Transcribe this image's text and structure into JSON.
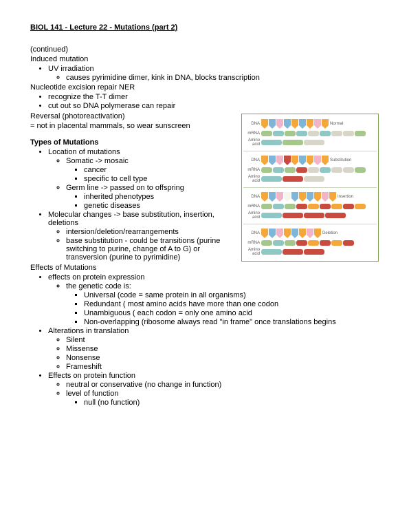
{
  "title": "BIOL 141 - Lecture 22 - Mutations (part 2)",
  "intro": {
    "continued": "(continued)",
    "induced": "Induced mutation",
    "uv": "UV irradiation",
    "uv_detail": "causes pyrimidine dimer, kink in DNA, blocks transcription",
    "ner": "Nucleotide excision repair NER",
    "ner1": "recognize the T-T dimer",
    "ner2": "cut out so DNA polymerase can repair",
    "reversal": "Reversal (photoreactivation)",
    "reversal_note": "= not in placental mammals, so wear sunscreen"
  },
  "types_header": "Types of Mutations",
  "types": {
    "loc": "Location of mutations",
    "somatic": "Somatic -> mosaic",
    "somatic1": "cancer",
    "somatic2": "specific to cell type",
    "germ": "Germ line -> passed on to offspring",
    "germ1": "inherited phenotypes",
    "germ2": "genetic diseases",
    "molec": "Molecular changes -> base substitution, insertion, deletions",
    "molec1": "intersion/deletion/rearrangements",
    "molec2": "base substitution - could be transitions (purine switching to purine, change of A to G) or transversion (purine to pyrimidine)"
  },
  "effects_header": "Effects of Mutations",
  "effects": {
    "prot": "effects on protein expression",
    "gc": "the genetic code is:",
    "gc1": "Universal (code = same protein in all organisms)",
    "gc2": "Redundant ( most amino acids have more than one codon",
    "gc3": "Unambiguous ( each codon = only one amino acid",
    "gc4": "Non-overlapping (ribosome always read \"in frame\" once translations begins",
    "alt": "Alterations in translation",
    "alt1": "Silent",
    "alt2": "Missense",
    "alt3": "Nonsense",
    "alt4": "Frameshift",
    "fn": "Effects on protein function",
    "fn1": "neutral or conservative (no change in function)",
    "fn2": "level of function",
    "fn2a": "null (no function)"
  },
  "diagram": {
    "row_labels": [
      "DNA",
      "mRNA",
      "Amino acid"
    ],
    "right_labels": [
      "Normal",
      "Substitution",
      "Insertion",
      "Deletion"
    ],
    "colors": {
      "orange": "#f4a83c",
      "blue": "#7fb5d6",
      "pink": "#f2b5c8",
      "red": "#c94a3f",
      "green": "#a5c78b",
      "teal": "#8ec7c4",
      "gray": "#d8d6c8",
      "white": "#f5f5f0"
    },
    "arrow_patterns": [
      [
        "orange",
        "blue",
        "pink",
        "blue",
        "orange",
        "blue",
        "orange",
        "pink",
        "orange"
      ],
      [
        "orange",
        "blue",
        "pink",
        "red",
        "orange",
        "blue",
        "orange",
        "pink",
        "orange"
      ],
      [
        "orange",
        "blue",
        "pink",
        "white",
        "blue",
        "orange",
        "blue",
        "orange",
        "pink",
        "orange"
      ],
      [
        "orange",
        "blue",
        "pink",
        "orange",
        "blue",
        "orange",
        "pink",
        "orange"
      ]
    ],
    "pill_patterns": [
      [
        "green",
        "teal",
        "green",
        "teal",
        "gray",
        "teal",
        "gray",
        "gray",
        "green"
      ],
      [
        "green",
        "teal",
        "green",
        "red",
        "gray",
        "teal",
        "gray",
        "gray",
        "green"
      ],
      [
        "green",
        "teal",
        "green",
        "red",
        "orange",
        "red",
        "orange",
        "red",
        "orange"
      ],
      [
        "green",
        "teal",
        "green",
        "red",
        "orange",
        "red",
        "orange",
        "red"
      ]
    ],
    "amino_patterns": [
      [
        "teal",
        "green",
        "gray"
      ],
      [
        "teal",
        "red",
        "gray"
      ],
      [
        "teal",
        "red",
        "red",
        "red"
      ],
      [
        "teal",
        "red",
        "red"
      ]
    ]
  }
}
